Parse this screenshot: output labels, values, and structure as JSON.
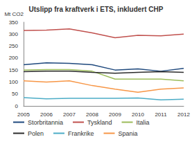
{
  "chart_data": {
    "type": "line",
    "title": "Utslipp fra kraftverk i ETS, inkludert CHP",
    "y_label": "Mt CO2",
    "categories": [
      "2005",
      "2006",
      "2007",
      "2008",
      "2009",
      "2010",
      "2011",
      "2012"
    ],
    "series": [
      {
        "name": "Storbritannia",
        "color": "#1f497d",
        "values": [
          172,
          180,
          178,
          172,
          150,
          155,
          145,
          157
        ]
      },
      {
        "name": "Tyskland",
        "color": "#c0504d",
        "values": [
          315,
          317,
          322,
          305,
          285,
          295,
          293,
          300
        ]
      },
      {
        "name": "Italia",
        "color": "#9bbb59",
        "values": [
          150,
          152,
          152,
          145,
          112,
          112,
          112,
          105
        ]
      },
      {
        "name": "Polen",
        "color": "#2b2b2b",
        "values": [
          143,
          145,
          145,
          140,
          137,
          140,
          143,
          140
        ]
      },
      {
        "name": "Frankrike",
        "color": "#4bacc6",
        "values": [
          35,
          30,
          32,
          32,
          32,
          33,
          25,
          28
        ]
      },
      {
        "name": "Spania",
        "color": "#f79646",
        "values": [
          105,
          100,
          105,
          85,
          70,
          57,
          70,
          75
        ]
      }
    ],
    "ylim": [
      0,
      350
    ],
    "yticks": [
      0,
      50,
      100,
      150,
      200,
      250,
      300,
      350
    ],
    "grid": false,
    "legend": "bottom"
  }
}
